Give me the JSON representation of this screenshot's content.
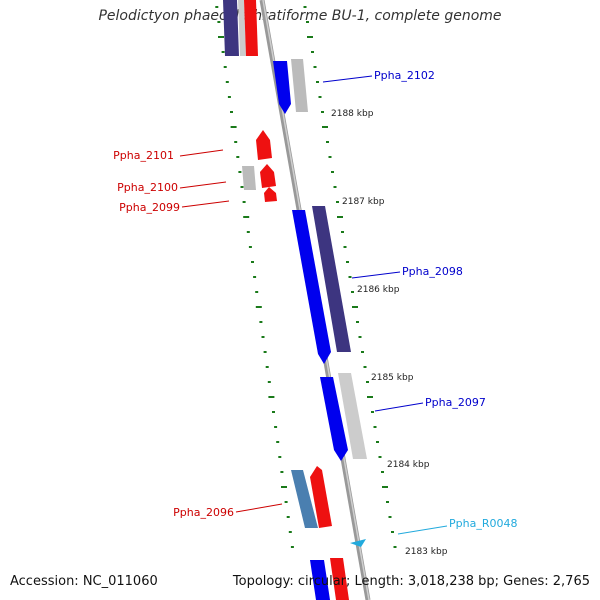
{
  "title": "Pelodictyon phaeoclathratiforme BU-1, complete genome",
  "footer": {
    "accession": "Accession: NC_011060",
    "summary": "Topology: circular; Length: 3,018,238 bp; Genes: 2,765"
  },
  "kbp_labels": [
    "2188 kbp",
    "2187 kbp",
    "2186 kbp",
    "2185 kbp",
    "2184 kbp",
    "2183 kbp"
  ],
  "genes": [
    {
      "name": "Ppha_2102",
      "color": "#0000cc"
    },
    {
      "name": "Ppha_2101",
      "color": "#cc0000"
    },
    {
      "name": "Ppha_2100",
      "color": "#cc0000"
    },
    {
      "name": "Ppha_2099",
      "color": "#cc0000"
    },
    {
      "name": "Ppha_2098",
      "color": "#0000cc"
    },
    {
      "name": "Ppha_2097",
      "color": "#0000cc"
    },
    {
      "name": "Ppha_2096",
      "color": "#cc0000"
    },
    {
      "name": "Ppha_R0048",
      "color": "#22aadd"
    }
  ],
  "colors": {
    "backbone": "#999999",
    "tick": "#1a7a1a",
    "forward": "#0000ee",
    "reverse": "#ee1111",
    "pseudo_gray": "#bbbbbb",
    "dark_blue": "#3d3580",
    "steel_blue": "#4a7fb0",
    "rna": "#22aadd"
  }
}
